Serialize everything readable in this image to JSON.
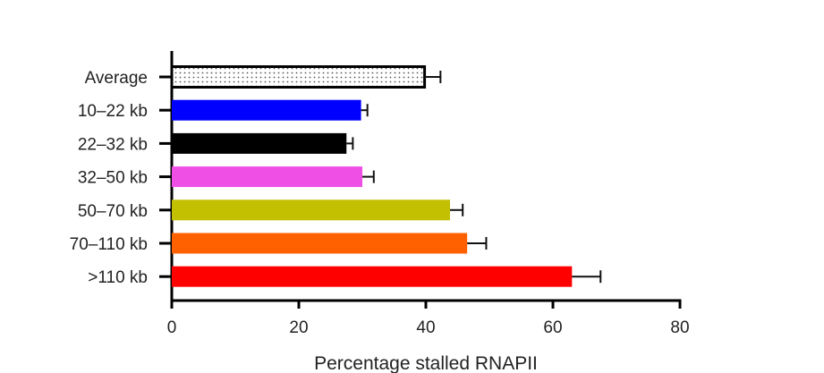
{
  "chart_data": {
    "type": "bar",
    "orientation": "horizontal",
    "categories": [
      "Average",
      "10–22 kb",
      "22–32 kb",
      "32–50 kb",
      "50–70 kb",
      "70–110 kb",
      ">110 kb"
    ],
    "values": [
      39.8,
      29.8,
      27.5,
      30.0,
      43.8,
      46.5,
      63.0
    ],
    "errors": [
      2.5,
      1.0,
      1.0,
      1.8,
      2.0,
      3.0,
      4.5
    ],
    "colors": [
      "#ffffff",
      "#0000ff",
      "#000000",
      "#f04fe6",
      "#c2c000",
      "#ff6100",
      "#ff0000"
    ],
    "patterns": [
      "dotted",
      "",
      "",
      "",
      "",
      "",
      ""
    ],
    "xlabel": "Percentage stalled RNAPII",
    "ylabel": "",
    "xlim": [
      0,
      80
    ],
    "xticks": [
      0,
      20,
      40,
      60,
      80
    ],
    "grid": false,
    "legend": "none"
  }
}
